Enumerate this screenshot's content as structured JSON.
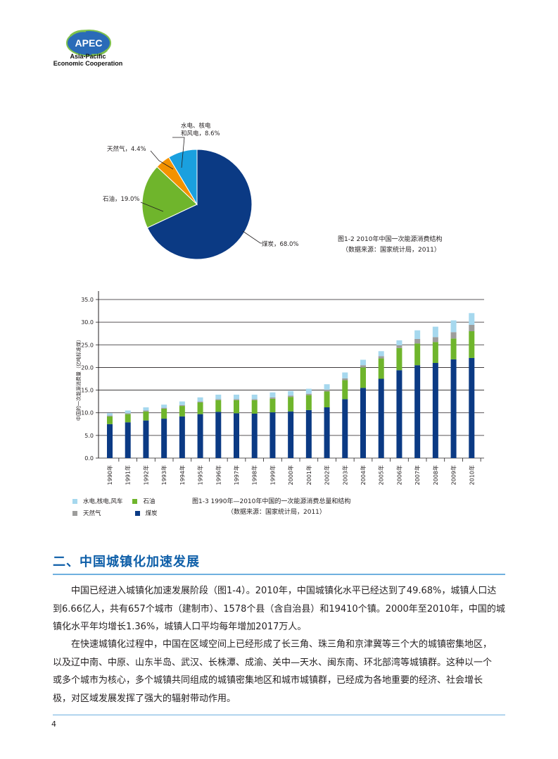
{
  "logo": {
    "badge": "APEC",
    "line1": "Asia-Pacific",
    "line2": "Economic Cooperation",
    "colors": {
      "globe": "#1f5fae",
      "leaf": "#3e9d3c"
    }
  },
  "pie": {
    "labels": {
      "hydro": "水电、核电\n和风电，8.6%",
      "gas": "天然气，4.4%",
      "oil": "石油，19.0%",
      "coal": "煤炭，68.0%"
    },
    "caption_line1": "图1-2 2010年中国一次能源消费结构",
    "caption_line2": "（数据来源：国家统计局，2011）"
  },
  "bar": {
    "ylabel": "中国的一次能源消费量（亿吨标准煤）",
    "legend": {
      "hydro": "水电,核电,风车",
      "oil": "石油",
      "gas": "天然气",
      "coal": "煤炭"
    },
    "caption_line1": "图1-3 1990年—2010年中国的一次能源消费总量和结构",
    "caption_line2": "（数据来源：国家统计局，2011）"
  },
  "chart_data": [
    {
      "type": "pie",
      "slices": [
        {
          "name": "煤炭",
          "value": 68.0,
          "color": "#0b3a84"
        },
        {
          "name": "石油",
          "value": 19.0,
          "color": "#6fb52c"
        },
        {
          "name": "天然气",
          "value": 4.4,
          "color": "#f39200"
        },
        {
          "name": "水电、核电和风电",
          "value": 8.6,
          "color": "#1aa0df"
        }
      ]
    },
    {
      "type": "bar",
      "stacked": true,
      "categories": [
        "1990年",
        "1991年",
        "1992年",
        "1993年",
        "1994年",
        "1995年",
        "1996年",
        "1997年",
        "1998年",
        "1999年",
        "2000年",
        "2001年",
        "2002年",
        "2003年",
        "2004年",
        "2005年",
        "2006年",
        "2007年",
        "2008年",
        "2009年",
        "2010年"
      ],
      "ylim": [
        0,
        35
      ],
      "yticks": [
        "0.0",
        "5.0",
        "10.0",
        "15.0",
        "20.0",
        "25.0",
        "30.0",
        "35.0"
      ],
      "grid": true,
      "series": [
        {
          "name": "煤炭",
          "color": "#0b3a84",
          "values": [
            7.5,
            7.9,
            8.3,
            8.7,
            9.2,
            9.7,
            10.2,
            9.9,
            9.8,
            10.1,
            10.3,
            10.6,
            11.2,
            13.0,
            15.5,
            17.5,
            19.4,
            20.5,
            21.0,
            21.8,
            22.1
          ]
        },
        {
          "name": "石油",
          "color": "#6fb52c",
          "values": [
            1.7,
            1.8,
            2.0,
            2.2,
            2.3,
            2.6,
            2.6,
            2.9,
            3.0,
            3.0,
            3.2,
            3.3,
            3.5,
            4.2,
            4.5,
            4.5,
            4.9,
            4.8,
            4.6,
            4.6,
            5.9
          ]
        },
        {
          "name": "天然气",
          "color": "#9d9d9c",
          "values": [
            0.2,
            0.2,
            0.2,
            0.2,
            0.2,
            0.2,
            0.2,
            0.2,
            0.2,
            0.3,
            0.3,
            0.3,
            0.4,
            0.4,
            0.5,
            0.5,
            0.6,
            1.0,
            1.1,
            1.4,
            1.4
          ]
        },
        {
          "name": "水电,核电,风车",
          "color": "#a6d8ee",
          "values": [
            0.5,
            0.6,
            0.7,
            0.7,
            0.8,
            0.9,
            1.0,
            1.0,
            1.0,
            1.1,
            1.0,
            1.1,
            1.2,
            1.3,
            1.2,
            1.1,
            1.1,
            1.9,
            2.3,
            2.6,
            2.6
          ]
        }
      ]
    }
  ],
  "section": {
    "heading": "二、中国城镇化加速发展",
    "p1": [
      "中国已经进入城镇化加速发展阶段（图1-4）。2010年，中国城镇化水平已经达到了49.68%，城镇人口达",
      "到6.66亿人，共有657个城市（建制市）、1578个县（含自治县）和19410个镇。2000年至2010年，中国的城",
      "镇化水平年均增长1.36%，城镇人口平均每年增加2017万人。"
    ],
    "p2": [
      "在快速城镇化过程中，中国在区域空间上已经形成了长三角、珠三角和京津冀等三个大的城镇密集地区，",
      "以及辽中南、中原、山东半岛、武汉、长株潭、成渝、关中—天水、闽东南、环北部湾等城镇群。这种以一个",
      "或多个城市为核心，多个城镇共同组成的城镇密集地区和城市城镇群，已经成为各地重要的经济、社会增长",
      "极，对区域发展发挥了强大的辐射带动作用。"
    ]
  },
  "footer": {
    "page_number": "4"
  }
}
